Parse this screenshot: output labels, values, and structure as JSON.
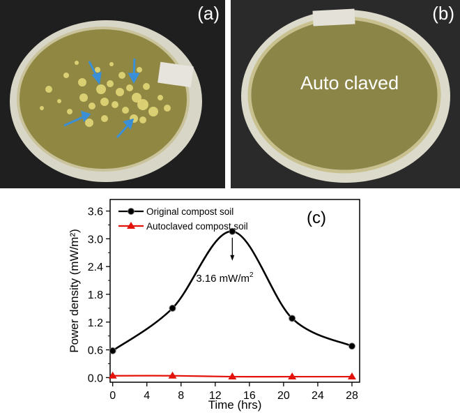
{
  "panels": {
    "a": {
      "label": "(a)"
    },
    "b": {
      "label": "(b)",
      "caption": "Auto claved"
    }
  },
  "colors": {
    "original": "#000000",
    "autoclaved": "#e3120b",
    "arrow": "#3b8fd6",
    "agar": "#8f8742",
    "background": "#1e1e1e"
  },
  "chart_data": {
    "type": "line",
    "panel_label": "(c)",
    "xlabel": "Time (hrs)",
    "ylabel": "Power density (mW/m²)",
    "xlim": [
      0,
      28
    ],
    "ylim": [
      -0.1,
      3.85
    ],
    "xticks": [
      0,
      4,
      8,
      12,
      16,
      20,
      24,
      28
    ],
    "yticks": [
      0.0,
      0.6,
      1.2,
      1.8,
      2.4,
      3.0,
      3.6
    ],
    "ytick_labels": [
      "0.0",
      "0.6",
      "1.2",
      "1.8",
      "2.4",
      "3.0",
      "3.6"
    ],
    "legend_position": "top-left",
    "series": [
      {
        "name": "Original compost soil",
        "marker": "circle",
        "x": [
          0,
          7,
          14,
          21,
          28
        ],
        "y": [
          0.58,
          1.5,
          3.16,
          1.28,
          0.68
        ]
      },
      {
        "name": "Autoclaved compost soil",
        "marker": "triangle",
        "x": [
          0,
          7,
          14,
          21,
          28
        ],
        "y": [
          0.04,
          0.04,
          0.02,
          0.02,
          0.02
        ]
      }
    ],
    "annotation": {
      "text": "3.16 mW/m",
      "superscript": "2",
      "x": 14,
      "y": 3.16
    }
  }
}
